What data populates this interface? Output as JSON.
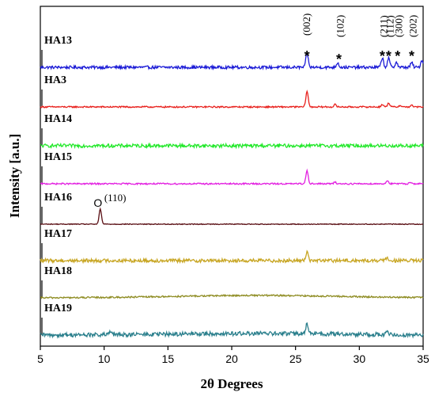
{
  "chart_data": {
    "type": "line",
    "xlabel": "2θ Degrees",
    "ylabel": "Intensity [a.u.]",
    "xlim": [
      5,
      35
    ],
    "x_ticks": [
      "5",
      "10",
      "15",
      "20",
      "25",
      "30",
      "35"
    ],
    "series": [
      {
        "name": "HA13",
        "color": "#1a1ad6",
        "noise": 1.8,
        "drift": 0,
        "peaks": [
          [
            25.9,
            18
          ],
          [
            28.3,
            6
          ],
          [
            31.8,
            12
          ],
          [
            32.3,
            11
          ],
          [
            32.9,
            7
          ],
          [
            34.1,
            6
          ],
          [
            34.9,
            9
          ]
        ]
      },
      {
        "name": "HA3",
        "color": "#e8201c",
        "noise": 0.9,
        "drift": 0,
        "peaks": [
          [
            25.9,
            20
          ],
          [
            28.1,
            3
          ],
          [
            31.8,
            3
          ],
          [
            32.3,
            5
          ],
          [
            33.2,
            2
          ],
          [
            34.1,
            2
          ]
        ]
      },
      {
        "name": "HA14",
        "color": "#22e82a",
        "noise": 2.2,
        "drift": 0,
        "peaks": []
      },
      {
        "name": "HA15",
        "color": "#e21ee0",
        "noise": 0.9,
        "drift": 0,
        "peaks": [
          [
            25.9,
            17
          ],
          [
            28.1,
            2
          ],
          [
            32.2,
            4
          ],
          [
            34.0,
            2
          ]
        ]
      },
      {
        "name": "HA16",
        "color": "#5a0f14",
        "noise": 0.5,
        "drift": 0,
        "peaks": [
          [
            9.7,
            19
          ]
        ]
      },
      {
        "name": "HA17",
        "color": "#c8a624",
        "noise": 2.2,
        "drift": 0,
        "peaks": [
          [
            25.9,
            12
          ],
          [
            32.2,
            4
          ]
        ]
      },
      {
        "name": "HA18",
        "color": "#8e8c22",
        "noise": 1.0,
        "drift": 3,
        "peaks": []
      },
      {
        "name": "HA19",
        "color": "#2a7f8c",
        "noise": 2.6,
        "drift": 2,
        "peaks": [
          [
            10.5,
            4
          ],
          [
            25.9,
            13
          ],
          [
            32.2,
            3
          ]
        ]
      }
    ],
    "annotations": [
      {
        "symbol": "*",
        "label": "(002)",
        "x": 25.9
      },
      {
        "symbol": "*",
        "label": "(102)",
        "x": 28.4
      },
      {
        "symbol": "*",
        "label": "(211)",
        "x": 31.8
      },
      {
        "symbol": "*",
        "label": "(112)",
        "x": 32.3
      },
      {
        "symbol": "*",
        "label": "(300)",
        "x": 33.0
      },
      {
        "symbol": "*",
        "label": "(202)",
        "x": 34.1
      }
    ],
    "o_annotation": {
      "symbol": "O",
      "label": "(110)",
      "x": 9.7,
      "series": "HA16"
    }
  }
}
